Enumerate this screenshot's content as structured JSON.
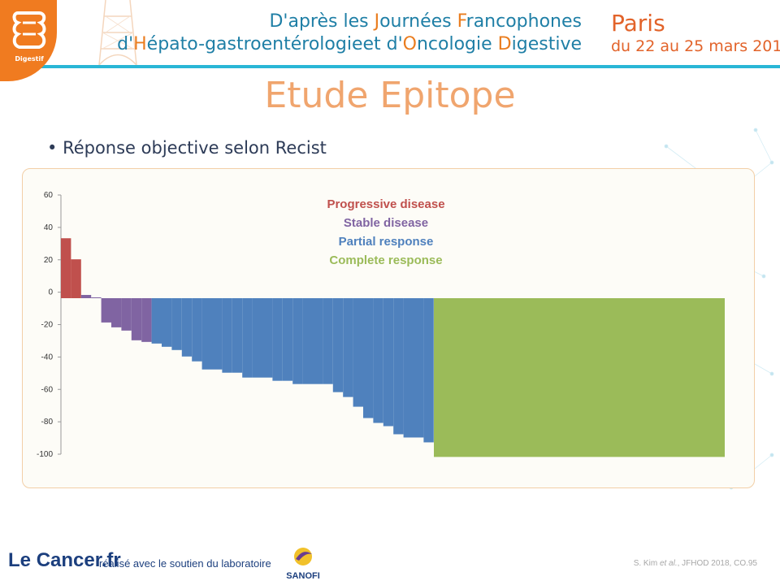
{
  "logo": {
    "text": "Digestif",
    "icon": "intestine-icon"
  },
  "header": {
    "line1": {
      "prefix": "D'après les ",
      "j": "J",
      "ournees": "ournées ",
      "f": "F",
      "rest": "rancophones"
    },
    "line2": {
      "d": "d'",
      "h": "H",
      "hep": "épato-gastroentérologieet d'",
      "o": "O",
      "onco": "ncologie ",
      "dd": "D",
      "dig": "igestive"
    },
    "city": "Paris",
    "dates": "du 22 au 25 mars 2018",
    "accent_color": "#ea7d1f",
    "text_color": "#1f7fa6",
    "bar_color": "#2ab6d6"
  },
  "slide": {
    "title": "Etude Epitope",
    "bullet": "Réponse objective selon Recist"
  },
  "chart_data": {
    "type": "bar",
    "subtype": "waterfall",
    "ylim": [
      -100,
      60
    ],
    "yticks": [
      60,
      40,
      20,
      0,
      -20,
      -40,
      -60,
      -80,
      -100
    ],
    "legend": [
      "Progressive disease",
      "Stable disease",
      "Partial response",
      "Complete response"
    ],
    "colors": {
      "Progressive disease": "#c0504d",
      "Stable disease": "#8064a2",
      "Partial response": "#4f81bd",
      "Complete response": "#9bbb59"
    },
    "legend_placement": "top-center",
    "bars": [
      {
        "v": 37,
        "c": "Progressive disease"
      },
      {
        "v": 24,
        "c": "Progressive disease"
      },
      {
        "v": 2,
        "c": "Stable disease"
      },
      {
        "v": 0.5,
        "c": "Stable disease"
      },
      {
        "v": -15,
        "c": "Stable disease"
      },
      {
        "v": -18,
        "c": "Stable disease"
      },
      {
        "v": -20,
        "c": "Stable disease"
      },
      {
        "v": -26,
        "c": "Stable disease"
      },
      {
        "v": -27,
        "c": "Stable disease"
      },
      {
        "v": -28,
        "c": "Partial response"
      },
      {
        "v": -30,
        "c": "Partial response"
      },
      {
        "v": -32,
        "c": "Partial response"
      },
      {
        "v": -36,
        "c": "Partial response"
      },
      {
        "v": -39,
        "c": "Partial response"
      },
      {
        "v": -44,
        "c": "Partial response"
      },
      {
        "v": -44,
        "c": "Partial response"
      },
      {
        "v": -46,
        "c": "Partial response"
      },
      {
        "v": -46,
        "c": "Partial response"
      },
      {
        "v": -49,
        "c": "Partial response"
      },
      {
        "v": -49,
        "c": "Partial response"
      },
      {
        "v": -49,
        "c": "Partial response"
      },
      {
        "v": -51,
        "c": "Partial response"
      },
      {
        "v": -51,
        "c": "Partial response"
      },
      {
        "v": -53,
        "c": "Partial response"
      },
      {
        "v": -53,
        "c": "Partial response"
      },
      {
        "v": -53,
        "c": "Partial response"
      },
      {
        "v": -53,
        "c": "Partial response"
      },
      {
        "v": -58,
        "c": "Partial response"
      },
      {
        "v": -61,
        "c": "Partial response"
      },
      {
        "v": -67,
        "c": "Partial response"
      },
      {
        "v": -74,
        "c": "Partial response"
      },
      {
        "v": -77,
        "c": "Partial response"
      },
      {
        "v": -79,
        "c": "Partial response"
      },
      {
        "v": -84,
        "c": "Partial response"
      },
      {
        "v": -86,
        "c": "Partial response"
      },
      {
        "v": -86,
        "c": "Partial response"
      },
      {
        "v": -89,
        "c": "Partial response"
      },
      {
        "v": -98,
        "c": "Complete response"
      }
    ]
  },
  "footer": {
    "logo_le": "Le ",
    "logo_cancer": "Cancer.fr",
    "support_text": "réalisé avec le soutien du laboratoire",
    "sanofi": "SANOFI",
    "citation_author": "S. Kim ",
    "citation_etal": "et al.",
    "citation_rest": ", JFHOD 2018, CO.95"
  }
}
